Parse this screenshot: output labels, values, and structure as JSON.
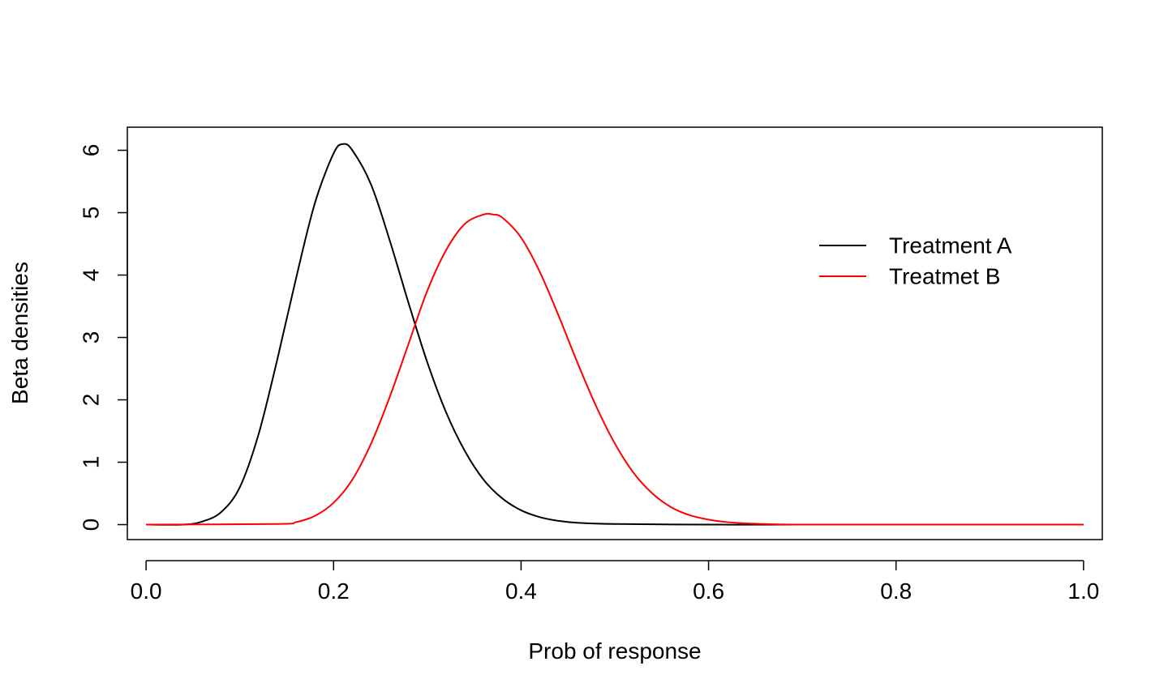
{
  "chart_data": {
    "type": "line",
    "title": "",
    "xlabel": "Prob of response",
    "ylabel": "Beta densities",
    "xlim": [
      -0.02,
      1.02
    ],
    "ylim": [
      -0.24,
      6.37
    ],
    "x_ticks": [
      0.0,
      0.2,
      0.4,
      0.6,
      0.8,
      1.0
    ],
    "x_tick_labels": [
      "0.0",
      "0.2",
      "0.4",
      "0.6",
      "0.8",
      "1.0"
    ],
    "y_ticks": [
      0,
      1,
      2,
      3,
      4,
      5,
      6
    ],
    "y_tick_labels": [
      "0",
      "1",
      "2",
      "3",
      "4",
      "5",
      "6"
    ],
    "grid": false,
    "legend_position": "top-right",
    "colors": {
      "series_a": "#000000",
      "series_b": "#ff0000",
      "axis": "#000000"
    },
    "series": [
      {
        "name": "Treatment A",
        "color": "#000000",
        "x": [
          0.0,
          0.04,
          0.06,
          0.08,
          0.1,
          0.12,
          0.14,
          0.16,
          0.18,
          0.2,
          0.21,
          0.22,
          0.24,
          0.26,
          0.28,
          0.3,
          0.32,
          0.34,
          0.36,
          0.38,
          0.4,
          0.42,
          0.44,
          0.46,
          0.5,
          0.6,
          0.7,
          1.0
        ],
        "y": [
          0.0,
          0.0,
          0.05,
          0.2,
          0.6,
          1.45,
          2.65,
          3.95,
          5.15,
          5.95,
          6.1,
          6.0,
          5.45,
          4.55,
          3.55,
          2.6,
          1.8,
          1.18,
          0.72,
          0.42,
          0.23,
          0.12,
          0.06,
          0.03,
          0.01,
          0.0,
          0.0,
          0.0
        ]
      },
      {
        "name": "Treatmet B",
        "color": "#ff0000",
        "x": [
          0.0,
          0.14,
          0.16,
          0.18,
          0.2,
          0.22,
          0.24,
          0.26,
          0.28,
          0.3,
          0.32,
          0.34,
          0.36,
          0.37,
          0.38,
          0.4,
          0.42,
          0.44,
          0.46,
          0.48,
          0.5,
          0.52,
          0.54,
          0.56,
          0.58,
          0.6,
          0.62,
          0.64,
          0.66,
          0.7,
          0.8,
          1.0
        ],
        "y": [
          0.0,
          0.01,
          0.04,
          0.14,
          0.35,
          0.72,
          1.3,
          2.05,
          2.9,
          3.75,
          4.4,
          4.82,
          4.97,
          4.97,
          4.92,
          4.6,
          4.05,
          3.35,
          2.6,
          1.9,
          1.3,
          0.83,
          0.5,
          0.28,
          0.15,
          0.08,
          0.04,
          0.02,
          0.01,
          0.0,
          0.0,
          0.0
        ]
      }
    ]
  }
}
